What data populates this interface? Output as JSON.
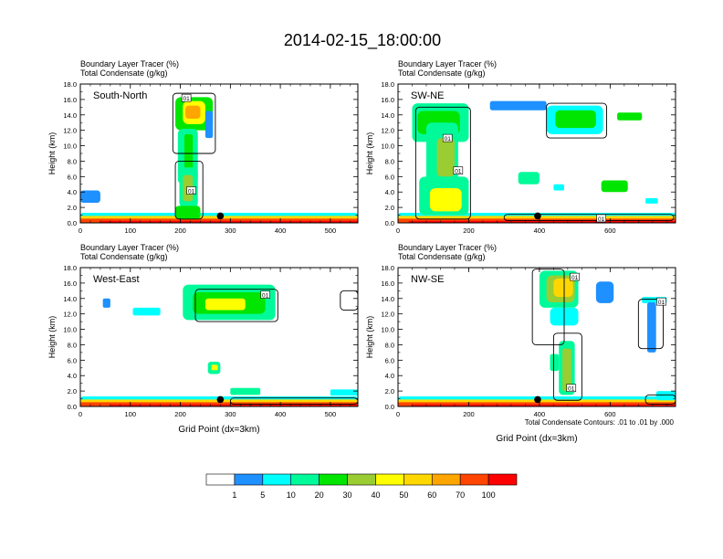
{
  "title": "2014-02-15_18:00:00",
  "panel_labels": {
    "line1": "Boundary Layer Tracer    (%)",
    "line2": "Total Condensate    (g/kg)"
  },
  "contour_note": "Total Condensate Contours: .01 to .01 by .000",
  "colors": [
    "#ffffff",
    "#1e90ff",
    "#00ffff",
    "#00fa9a",
    "#00e600",
    "#9acd32",
    "#ffff00",
    "#ffd700",
    "#ffa500",
    "#ff4500",
    "#ff0000"
  ],
  "chart_data": [
    {
      "type": "heatmap",
      "name": "South-North",
      "ylabel": "Height (km)",
      "xlabel": "",
      "xlim": [
        0,
        555
      ],
      "ylim": [
        0,
        18
      ],
      "xticks": [
        0,
        100,
        200,
        300,
        400,
        500
      ],
      "yticks": [
        "0.0",
        "2.0",
        "4.0",
        "6.0",
        "8.0",
        "10.0",
        "12.0",
        "14.0",
        "16.0",
        "18.0"
      ],
      "marker_x": 280,
      "contour_labels": [
        {
          "text": "01",
          "x": 212,
          "y": 16.2
        },
        {
          "text": "01",
          "x": 222,
          "y": 4.2
        }
      ]
    },
    {
      "type": "heatmap",
      "name": "SW-NE",
      "ylabel": "Height (km)",
      "xlabel": "",
      "xlim": [
        0,
        785
      ],
      "ylim": [
        0,
        18
      ],
      "xticks": [
        0,
        200,
        400,
        600
      ],
      "yticks": [
        "0.0",
        "2.0",
        "4.0",
        "6.0",
        "8.0",
        "10.0",
        "12.0",
        "14.0",
        "16.0",
        "18.0"
      ],
      "marker_x": 395,
      "contour_labels": [
        {
          "text": "01",
          "x": 140,
          "y": 11.0
        },
        {
          "text": "01",
          "x": 170,
          "y": 6.8
        },
        {
          "text": "01",
          "x": 575,
          "y": 0.6
        }
      ]
    },
    {
      "type": "heatmap",
      "name": "West-East",
      "ylabel": "Height (km)",
      "xlabel": "Grid Point (dx=3km)",
      "xlim": [
        0,
        555
      ],
      "ylim": [
        0,
        18
      ],
      "xticks": [
        0,
        100,
        200,
        300,
        400,
        500
      ],
      "yticks": [
        "0.0",
        "2.0",
        "4.0",
        "6.0",
        "8.0",
        "10.0",
        "12.0",
        "14.0",
        "16.0",
        "18.0"
      ],
      "marker_x": 280,
      "contour_labels": [
        {
          "text": "01",
          "x": 370,
          "y": 14.5
        }
      ]
    },
    {
      "type": "heatmap",
      "name": "NW-SE",
      "ylabel": "Height (km)",
      "xlabel": "Grid Point (dx=3km)",
      "xlim": [
        0,
        785
      ],
      "ylim": [
        0,
        18
      ],
      "xticks": [
        0,
        200,
        400,
        600
      ],
      "yticks": [
        "0.0",
        "2.0",
        "4.0",
        "6.0",
        "8.0",
        "10.0",
        "12.0",
        "14.0",
        "16.0",
        "18.0"
      ],
      "marker_x": 395,
      "contour_labels": [
        {
          "text": "01",
          "x": 500,
          "y": 16.8
        },
        {
          "text": "01",
          "x": 745,
          "y": 13.6
        },
        {
          "text": "01",
          "x": 490,
          "y": 2.4
        }
      ]
    }
  ],
  "colorbar": {
    "labels": [
      "1",
      "5",
      "10",
      "20",
      "30",
      "40",
      "50",
      "60",
      "70",
      "100"
    ]
  }
}
